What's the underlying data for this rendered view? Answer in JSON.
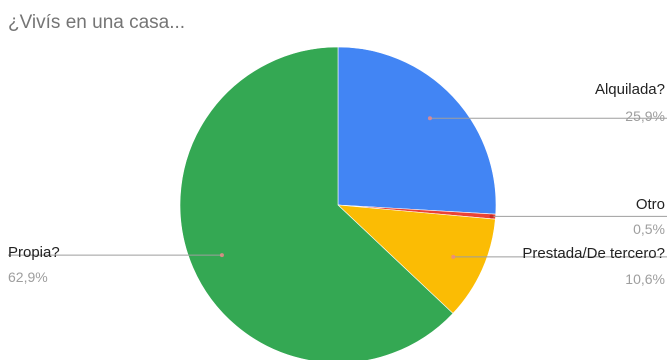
{
  "chart_data": {
    "type": "pie",
    "title": "¿Vivís en una casa...",
    "slices": [
      {
        "label": "Alquilada?",
        "value": 25.9,
        "percent_label": "25,9%",
        "color": "#4285f4"
      },
      {
        "label": "Otro",
        "value": 0.5,
        "percent_label": "0,5%",
        "color": "#ea4335"
      },
      {
        "label": "Prestada/De tercero?",
        "value": 10.6,
        "percent_label": "10,6%",
        "color": "#fbbc04"
      },
      {
        "label": "Propia?",
        "value": 62.9,
        "percent_label": "62,9%",
        "color": "#34a853"
      }
    ],
    "start_angle": "12 o'clock",
    "direction": "clockwise",
    "legend": "none (labels with leader lines)"
  }
}
